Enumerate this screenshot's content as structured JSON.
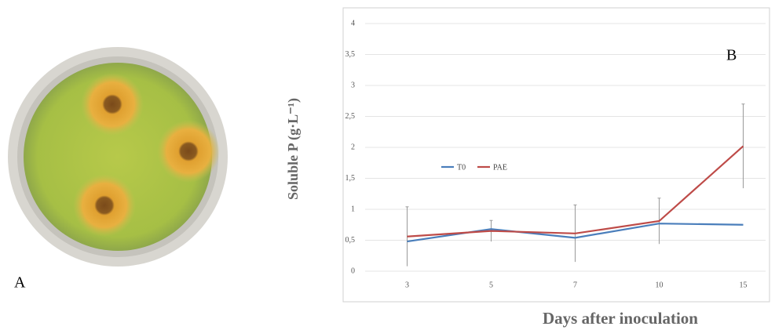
{
  "panel_a": {
    "label": "A"
  },
  "chart_data": {
    "type": "line",
    "panel_label": "B",
    "y_label": "Soluble P (g·L⁻¹)",
    "x_label": "Days after inoculation",
    "categories": [
      "3",
      "5",
      "7",
      "10",
      "15"
    ],
    "series": [
      {
        "name": "T0",
        "color": "#4a7ebb",
        "values": [
          0.48,
          0.68,
          0.54,
          0.77,
          0.75
        ]
      },
      {
        "name": "PAE",
        "color": "#be4b48",
        "values": [
          0.56,
          0.65,
          0.61,
          0.81,
          2.02
        ],
        "errors": [
          0.48,
          0.17,
          0.46,
          0.37,
          0.68
        ]
      }
    ],
    "ylim": [
      0,
      4
    ],
    "yticks": [
      0,
      {
        "value": 0.5,
        "label": "0,5"
      },
      1,
      {
        "value": 1.5,
        "label": "1,5"
      },
      2,
      {
        "value": 2.5,
        "label": "2,5"
      },
      3,
      {
        "value": 3.5,
        "label": "3,5"
      },
      4
    ],
    "grid": true
  }
}
